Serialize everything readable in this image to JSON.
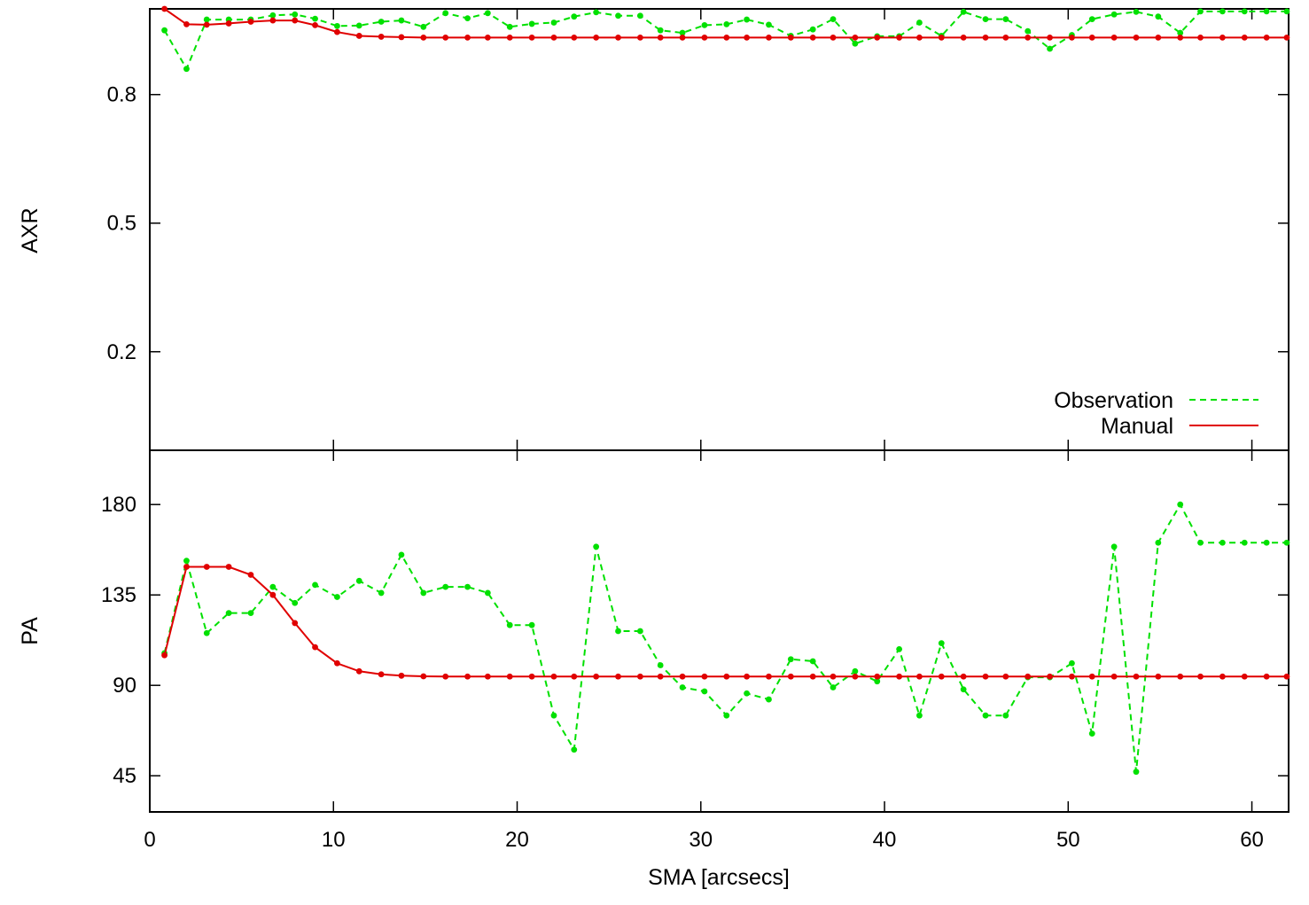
{
  "colors": {
    "observation": "#00e000",
    "manual": "#e00000",
    "frame": "#000000"
  },
  "chart_data": [
    {
      "type": "line",
      "panel": "top",
      "xlabel": "",
      "ylabel": "AXR",
      "xlim": [
        0,
        62
      ],
      "ylim": [
        -0.03,
        1.0
      ],
      "xticks": [
        0,
        10,
        20,
        30,
        40,
        50,
        60
      ],
      "yticks": [
        0.2,
        0.5,
        0.8
      ],
      "ytick_labels": [
        "0.2",
        "0.5",
        "0.8"
      ],
      "legend": {
        "position": "bottom-right",
        "entries": [
          "Observation",
          "Manual"
        ]
      },
      "series": [
        {
          "name": "Observation",
          "style": "dashed",
          "marker": "dot",
          "x": [
            0.8,
            2.0,
            3.1,
            4.3,
            5.5,
            6.7,
            7.9,
            9.0,
            10.2,
            11.4,
            12.6,
            13.7,
            14.9,
            16.1,
            17.3,
            18.4,
            19.6,
            20.8,
            22.0,
            23.1,
            24.3,
            25.5,
            26.7,
            27.8,
            29.0,
            30.2,
            31.4,
            32.5,
            33.7,
            34.9,
            36.1,
            37.2,
            38.4,
            39.6,
            40.8,
            41.9,
            43.1,
            44.3,
            45.5,
            46.6,
            47.8,
            49.0,
            50.2,
            51.3,
            52.5,
            53.7,
            54.9,
            56.1,
            57.2,
            58.4,
            59.6,
            60.8,
            61.9
          ],
          "y": [
            0.95,
            0.86,
            0.975,
            0.975,
            0.975,
            0.985,
            0.987,
            0.977,
            0.96,
            0.961,
            0.97,
            0.973,
            0.958,
            0.99,
            0.978,
            0.99,
            0.958,
            0.965,
            0.968,
            0.982,
            0.992,
            0.984,
            0.984,
            0.95,
            0.944,
            0.962,
            0.964,
            0.975,
            0.963,
            0.937,
            0.952,
            0.976,
            0.919,
            0.936,
            0.936,
            0.968,
            0.937,
            0.993,
            0.976,
            0.976,
            0.948,
            0.907,
            0.939,
            0.976,
            0.987,
            0.993,
            0.982,
            0.944,
            0.994,
            0.994,
            0.994,
            0.994,
            0.994
          ]
        },
        {
          "name": "Manual",
          "style": "solid",
          "marker": "dot",
          "x": [
            0.8,
            2.0,
            3.1,
            4.3,
            5.5,
            6.7,
            7.9,
            9.0,
            10.2,
            11.4,
            12.6,
            13.7,
            14.9,
            16.1,
            17.3,
            18.4,
            19.6,
            20.8,
            22.0,
            23.1,
            24.3,
            25.5,
            26.7,
            27.8,
            29.0,
            30.2,
            31.4,
            32.5,
            33.7,
            34.9,
            36.1,
            37.2,
            38.4,
            39.6,
            40.8,
            41.9,
            43.1,
            44.3,
            45.5,
            46.6,
            47.8,
            49.0,
            50.2,
            51.3,
            52.5,
            53.7,
            54.9,
            56.1,
            57.2,
            58.4,
            59.6,
            60.8,
            61.9
          ],
          "y": [
            1.0,
            0.964,
            0.963,
            0.966,
            0.97,
            0.973,
            0.973,
            0.962,
            0.946,
            0.937,
            0.935,
            0.934,
            0.933,
            0.933,
            0.933,
            0.933,
            0.933,
            0.933,
            0.933,
            0.933,
            0.933,
            0.933,
            0.933,
            0.933,
            0.933,
            0.933,
            0.933,
            0.933,
            0.933,
            0.933,
            0.933,
            0.933,
            0.933,
            0.933,
            0.933,
            0.933,
            0.933,
            0.933,
            0.933,
            0.933,
            0.933,
            0.933,
            0.933,
            0.933,
            0.933,
            0.933,
            0.933,
            0.933,
            0.933,
            0.933,
            0.933,
            0.933,
            0.933
          ]
        }
      ]
    },
    {
      "type": "line",
      "panel": "bottom",
      "xlabel": "SMA [arcsecs]",
      "ylabel": "PA",
      "xlim": [
        0,
        62
      ],
      "ylim": [
        27,
        207
      ],
      "xticks": [
        0,
        10,
        20,
        30,
        40,
        50,
        60
      ],
      "xtick_labels": [
        "0",
        "10",
        "20",
        "30",
        "40",
        "50",
        "60"
      ],
      "yticks": [
        45,
        90,
        135,
        180
      ],
      "ytick_labels": [
        "45",
        "90",
        "135",
        "180"
      ],
      "series": [
        {
          "name": "Observation",
          "style": "dashed",
          "marker": "dot",
          "x": [
            0.8,
            2.0,
            3.1,
            4.3,
            5.5,
            6.7,
            7.9,
            9.0,
            10.2,
            11.4,
            12.6,
            13.7,
            14.9,
            16.1,
            17.3,
            18.4,
            19.6,
            20.8,
            22.0,
            23.1,
            24.3,
            25.5,
            26.7,
            27.8,
            29.0,
            30.2,
            31.4,
            32.5,
            33.7,
            34.9,
            36.1,
            37.2,
            38.4,
            39.6,
            40.8,
            41.9,
            43.1,
            44.3,
            45.5,
            46.6,
            47.8,
            49.0,
            50.2,
            51.3,
            52.5,
            53.7,
            54.9,
            56.1,
            57.2,
            58.4,
            59.6,
            60.8,
            61.9
          ],
          "y": [
            106,
            152,
            116,
            126,
            126,
            139,
            131,
            140,
            134,
            142,
            136,
            155,
            136,
            139,
            139,
            136,
            120,
            120,
            75,
            58,
            159,
            117,
            117,
            100,
            89,
            87,
            75,
            86,
            83,
            103,
            102,
            89,
            97,
            92,
            108,
            75,
            111,
            88,
            75,
            75,
            94,
            94,
            101,
            66,
            159,
            47,
            161,
            180,
            161,
            161,
            161,
            161,
            161
          ]
        },
        {
          "name": "Manual",
          "style": "solid",
          "marker": "dot",
          "x": [
            0.8,
            2.0,
            3.1,
            4.3,
            5.5,
            6.7,
            7.9,
            9.0,
            10.2,
            11.4,
            12.6,
            13.7,
            14.9,
            16.1,
            17.3,
            18.4,
            19.6,
            20.8,
            22.0,
            23.1,
            24.3,
            25.5,
            26.7,
            27.8,
            29.0,
            30.2,
            31.4,
            32.5,
            33.7,
            34.9,
            36.1,
            37.2,
            38.4,
            39.6,
            40.8,
            41.9,
            43.1,
            44.3,
            45.5,
            46.6,
            47.8,
            49.0,
            50.2,
            51.3,
            52.5,
            53.7,
            54.9,
            56.1,
            57.2,
            58.4,
            59.6,
            60.8,
            61.9
          ],
          "y": [
            105,
            149,
            149,
            149,
            145,
            135,
            121,
            109,
            101,
            97,
            95.5,
            94.8,
            94.5,
            94.4,
            94.4,
            94.4,
            94.4,
            94.4,
            94.4,
            94.4,
            94.4,
            94.4,
            94.4,
            94.4,
            94.4,
            94.4,
            94.4,
            94.4,
            94.4,
            94.4,
            94.4,
            94.4,
            94.4,
            94.4,
            94.4,
            94.4,
            94.4,
            94.4,
            94.4,
            94.4,
            94.4,
            94.4,
            94.4,
            94.4,
            94.4,
            94.4,
            94.4,
            94.4,
            94.4,
            94.4,
            94.4,
            94.4,
            94.4
          ]
        }
      ]
    }
  ]
}
